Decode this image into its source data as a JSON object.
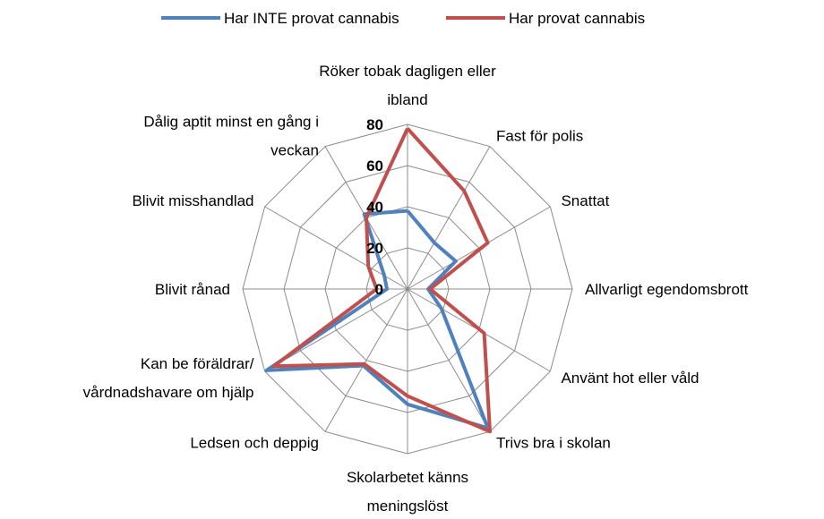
{
  "chart_data": {
    "type": "radar",
    "categories": [
      "Röker tobak dagligen eller\nibland",
      "Fast för polis",
      "Snattat",
      "Allvarligt egendomsbrott",
      "Använt hot eller våld",
      "Trivs bra i skolan",
      "Skolarbetet känns\nmeningslöst",
      "Ledsen och deppig",
      "Kan be föräldrar/\nvårdnadshavare om hjälp",
      "Blivit rånad",
      "Blivit misshandlad",
      "Dålig aptit minst en gång i\nveckan"
    ],
    "series": [
      {
        "name": "Har INTE provat cannabis",
        "color": "#4f81bd",
        "values": [
          38,
          26,
          27,
          10,
          19,
          78,
          56,
          43,
          79,
          10,
          13,
          42
        ]
      },
      {
        "name": "Har provat cannabis",
        "color": "#c0504d",
        "values": [
          78,
          55,
          45,
          11,
          43,
          80,
          52,
          42,
          75,
          15,
          22,
          40
        ]
      }
    ],
    "ylim": [
      0,
      80
    ],
    "yticks": [
      0,
      20,
      40,
      60,
      80
    ],
    "grid": true
  }
}
